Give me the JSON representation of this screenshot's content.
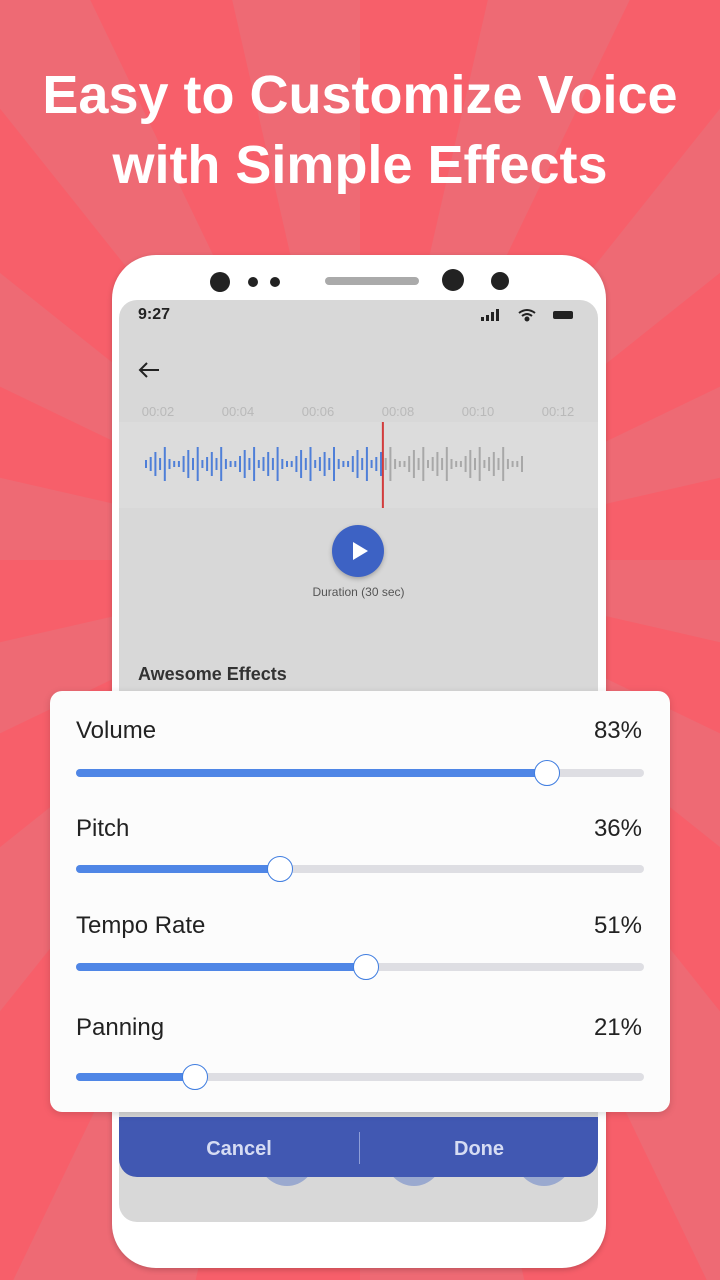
{
  "headline": {
    "line1": "Easy to Customize Voice",
    "line2": "with Simple Effects"
  },
  "colors": {
    "background": "#f75f6a",
    "accent": "#4f86e6",
    "button_bar": "#4158b2",
    "playhead": "#d23c3c"
  },
  "status_bar": {
    "time": "9:27",
    "icons": [
      "signal-icon",
      "wifi-icon",
      "battery-icon"
    ]
  },
  "timeline": {
    "ticks": [
      "00:02",
      "00:04",
      "00:06",
      "00:08",
      "00:10",
      "00:12"
    ]
  },
  "player": {
    "duration": "Duration (30 sec)",
    "progress_percent": 63
  },
  "section_title": "Awesome Effects",
  "effects_panel": [
    {
      "label": "Volume",
      "value_text": "83%",
      "value": 83
    },
    {
      "label": "Pitch",
      "value_text": "36%",
      "value": 36
    },
    {
      "label": "Tempo Rate",
      "value_text": "51%",
      "value": 51
    },
    {
      "label": "Panning",
      "value_text": "21%",
      "value": 21
    }
  ],
  "effect_icons": [
    "swords-icon",
    "monster-icon",
    "purple-monster-icon",
    "bee-icon"
  ],
  "actions": {
    "cancel": "Cancel",
    "done": "Done"
  }
}
